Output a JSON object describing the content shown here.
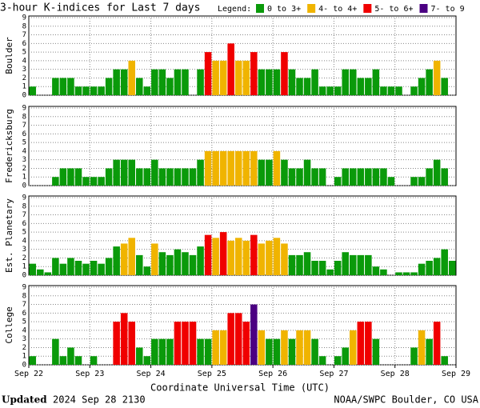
{
  "chart_data": {
    "type": "bar",
    "title": "3-hour K-indices for Last 7 days",
    "legend_title": "Legend:",
    "legend": [
      {
        "name": "0 to 3+",
        "color": "#0a9a0a"
      },
      {
        "name": "4- to 4+",
        "color": "#f0b400"
      },
      {
        "name": "5- to 6+",
        "color": "#f00000"
      },
      {
        "name": "7- to 9",
        "color": "#4b0082"
      }
    ],
    "xticks": [
      "Sep 22",
      "Sep 23",
      "Sep 24",
      "Sep 25",
      "Sep 26",
      "Sep 27",
      "Sep 28",
      "Sep 29"
    ],
    "x_label": "Coordinate Universal Time (UTC)",
    "ylim": [
      0,
      9
    ],
    "yticks": [
      0,
      1,
      2,
      3,
      4,
      5,
      6,
      7,
      8,
      9
    ],
    "grid": true,
    "footer_bold": "Updated",
    "footer_date": "2024 Sep 28 2130",
    "footer_right": "NOAA/SWPC Boulder, CO USA",
    "panels": [
      {
        "name": "Boulder",
        "values": [
          1,
          0,
          0,
          2,
          2,
          2,
          1,
          1,
          1,
          1,
          2,
          3,
          3,
          4,
          2,
          1,
          3,
          3,
          2,
          3,
          3,
          0,
          3,
          5,
          4,
          4,
          6,
          4,
          4,
          5,
          3,
          3,
          3,
          5,
          3,
          2,
          2,
          3,
          1,
          1,
          1,
          3,
          3,
          2,
          2,
          3,
          1,
          1,
          1,
          0,
          1,
          2,
          3,
          4,
          2,
          0
        ],
        "colors": [
          "#0a9a0a",
          "#0a9a0a",
          "#0a9a0a",
          "#0a9a0a",
          "#0a9a0a",
          "#0a9a0a",
          "#0a9a0a",
          "#0a9a0a",
          "#0a9a0a",
          "#0a9a0a",
          "#0a9a0a",
          "#0a9a0a",
          "#0a9a0a",
          "#f0b400",
          "#0a9a0a",
          "#0a9a0a",
          "#0a9a0a",
          "#0a9a0a",
          "#0a9a0a",
          "#0a9a0a",
          "#0a9a0a",
          "#0a9a0a",
          "#0a9a0a",
          "#f00000",
          "#f0b400",
          "#f0b400",
          "#f00000",
          "#f0b400",
          "#f0b400",
          "#f00000",
          "#0a9a0a",
          "#0a9a0a",
          "#0a9a0a",
          "#f00000",
          "#0a9a0a",
          "#0a9a0a",
          "#0a9a0a",
          "#0a9a0a",
          "#0a9a0a",
          "#0a9a0a",
          "#0a9a0a",
          "#0a9a0a",
          "#0a9a0a",
          "#0a9a0a",
          "#0a9a0a",
          "#0a9a0a",
          "#0a9a0a",
          "#0a9a0a",
          "#0a9a0a",
          "#0a9a0a",
          "#0a9a0a",
          "#0a9a0a",
          "#0a9a0a",
          "#f0b400",
          "#0a9a0a",
          "#0a9a0a"
        ]
      },
      {
        "name": "Fredericksburg",
        "values": [
          0,
          0,
          0,
          1,
          2,
          2,
          2,
          1,
          1,
          1,
          2,
          3,
          3,
          3,
          2,
          2,
          3,
          2,
          2,
          2,
          2,
          2,
          3,
          4,
          4,
          4,
          4,
          4,
          4,
          4,
          3,
          3,
          4,
          3,
          2,
          2,
          3,
          2,
          2,
          0,
          1,
          2,
          2,
          2,
          2,
          2,
          2,
          1,
          0,
          0,
          1,
          1,
          2,
          3,
          2,
          0
        ],
        "colors": [
          "#0a9a0a",
          "#0a9a0a",
          "#0a9a0a",
          "#0a9a0a",
          "#0a9a0a",
          "#0a9a0a",
          "#0a9a0a",
          "#0a9a0a",
          "#0a9a0a",
          "#0a9a0a",
          "#0a9a0a",
          "#0a9a0a",
          "#0a9a0a",
          "#0a9a0a",
          "#0a9a0a",
          "#0a9a0a",
          "#0a9a0a",
          "#0a9a0a",
          "#0a9a0a",
          "#0a9a0a",
          "#0a9a0a",
          "#0a9a0a",
          "#0a9a0a",
          "#f0b400",
          "#f0b400",
          "#f0b400",
          "#f0b400",
          "#f0b400",
          "#f0b400",
          "#f0b400",
          "#0a9a0a",
          "#0a9a0a",
          "#f0b400",
          "#0a9a0a",
          "#0a9a0a",
          "#0a9a0a",
          "#0a9a0a",
          "#0a9a0a",
          "#0a9a0a",
          "#0a9a0a",
          "#0a9a0a",
          "#0a9a0a",
          "#0a9a0a",
          "#0a9a0a",
          "#0a9a0a",
          "#0a9a0a",
          "#0a9a0a",
          "#0a9a0a",
          "#0a9a0a",
          "#0a9a0a",
          "#0a9a0a",
          "#0a9a0a",
          "#0a9a0a",
          "#0a9a0a",
          "#0a9a0a",
          "#0a9a0a"
        ]
      },
      {
        "name": "Est. Planetary",
        "values": [
          1.33,
          0.67,
          0.33,
          2,
          1.33,
          2,
          1.67,
          1.33,
          1.67,
          1.33,
          2,
          3.33,
          3.67,
          4.33,
          2.33,
          1,
          3.67,
          2.67,
          2.33,
          3,
          2.67,
          2.33,
          3.33,
          4.67,
          4.33,
          5,
          4,
          4.33,
          4,
          4.67,
          3.67,
          4,
          4.33,
          3.67,
          2.33,
          2.33,
          2.67,
          1.67,
          1.67,
          0.67,
          1.67,
          2.67,
          2.33,
          2.33,
          2.33,
          1,
          0.67,
          0,
          0.33,
          0.33,
          0.33,
          1.33,
          1.67,
          2,
          3,
          1.67
        ],
        "colors": [
          "#0a9a0a",
          "#0a9a0a",
          "#0a9a0a",
          "#0a9a0a",
          "#0a9a0a",
          "#0a9a0a",
          "#0a9a0a",
          "#0a9a0a",
          "#0a9a0a",
          "#0a9a0a",
          "#0a9a0a",
          "#0a9a0a",
          "#f0b400",
          "#f0b400",
          "#0a9a0a",
          "#0a9a0a",
          "#f0b400",
          "#0a9a0a",
          "#0a9a0a",
          "#0a9a0a",
          "#0a9a0a",
          "#0a9a0a",
          "#0a9a0a",
          "#f00000",
          "#f0b400",
          "#f00000",
          "#f0b400",
          "#f0b400",
          "#f0b400",
          "#f00000",
          "#f0b400",
          "#f0b400",
          "#f0b400",
          "#f0b400",
          "#0a9a0a",
          "#0a9a0a",
          "#0a9a0a",
          "#0a9a0a",
          "#0a9a0a",
          "#0a9a0a",
          "#0a9a0a",
          "#0a9a0a",
          "#0a9a0a",
          "#0a9a0a",
          "#0a9a0a",
          "#0a9a0a",
          "#0a9a0a",
          "#0a9a0a",
          "#0a9a0a",
          "#0a9a0a",
          "#0a9a0a",
          "#0a9a0a",
          "#0a9a0a",
          "#0a9a0a",
          "#0a9a0a",
          "#0a9a0a"
        ]
      },
      {
        "name": "College",
        "values": [
          1,
          0,
          0,
          3,
          1,
          2,
          1,
          0,
          1,
          0,
          0,
          5,
          6,
          5,
          2,
          1,
          3,
          3,
          3,
          5,
          5,
          5,
          3,
          3,
          4,
          4,
          6,
          6,
          5,
          7,
          4,
          3,
          3,
          4,
          3,
          4,
          4,
          3,
          1,
          0,
          1,
          2,
          4,
          5,
          5,
          3,
          0,
          0,
          0,
          0,
          2,
          4,
          3,
          5,
          1,
          0
        ],
        "colors": [
          "#0a9a0a",
          "#0a9a0a",
          "#0a9a0a",
          "#0a9a0a",
          "#0a9a0a",
          "#0a9a0a",
          "#0a9a0a",
          "#0a9a0a",
          "#0a9a0a",
          "#0a9a0a",
          "#0a9a0a",
          "#f00000",
          "#f00000",
          "#f00000",
          "#0a9a0a",
          "#0a9a0a",
          "#0a9a0a",
          "#0a9a0a",
          "#0a9a0a",
          "#f00000",
          "#f00000",
          "#f00000",
          "#0a9a0a",
          "#0a9a0a",
          "#f0b400",
          "#f0b400",
          "#f00000",
          "#f00000",
          "#f00000",
          "#4b0082",
          "#f0b400",
          "#0a9a0a",
          "#0a9a0a",
          "#f0b400",
          "#0a9a0a",
          "#f0b400",
          "#f0b400",
          "#0a9a0a",
          "#0a9a0a",
          "#0a9a0a",
          "#0a9a0a",
          "#0a9a0a",
          "#f0b400",
          "#f00000",
          "#f00000",
          "#0a9a0a",
          "#0a9a0a",
          "#0a9a0a",
          "#0a9a0a",
          "#0a9a0a",
          "#0a9a0a",
          "#f0b400",
          "#0a9a0a",
          "#f00000",
          "#0a9a0a",
          "#0a9a0a"
        ]
      }
    ]
  }
}
